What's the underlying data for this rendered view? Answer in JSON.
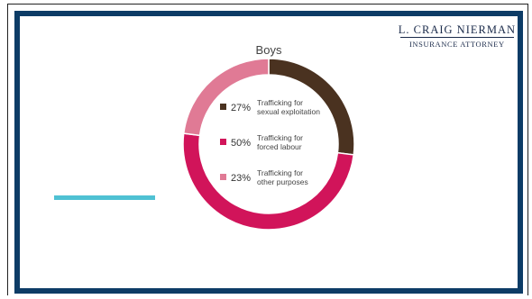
{
  "brand": {
    "name": "L. CRAIG NIERMAN",
    "subtitle": "INSURANCE ATTORNEY"
  },
  "colors": {
    "frame": "#0d3c66",
    "accent_line": "#4fc1d3"
  },
  "chart_data": {
    "type": "pie",
    "title": "Boys",
    "categories": [
      "Trafficking for sexual exploitation",
      "Trafficking for forced labour",
      "Trafficking for other purposes"
    ],
    "values": [
      27,
      50,
      23
    ],
    "unit": "%",
    "colors": [
      "#4a3220",
      "#d1145a",
      "#e07a95"
    ],
    "legend": [
      {
        "pct": "27%",
        "line1": "Trafficking for",
        "line2": "sexual exploitation"
      },
      {
        "pct": "50%",
        "line1": "Trafficking for",
        "line2": "forced labour"
      },
      {
        "pct": "23%",
        "line1": "Trafficking for",
        "line2": "other purposes"
      }
    ]
  }
}
